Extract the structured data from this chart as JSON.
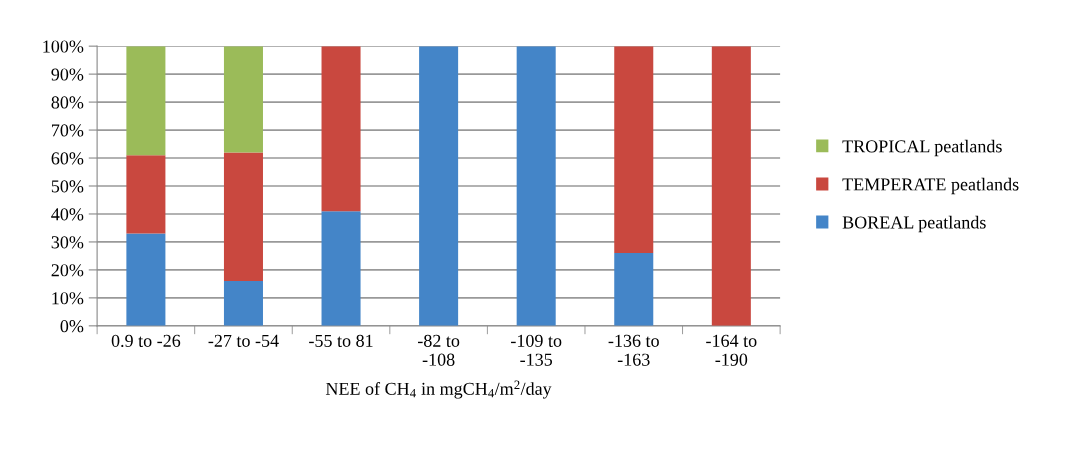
{
  "chart_data": {
    "type": "bar",
    "stacked": true,
    "xlabel": "NEE of CH$_{4}$ in mgCH$_{4}$/m$^{2}$/day",
    "categories": [
      "0.9 to -26",
      "-27 to -54",
      "-55 to 81",
      "-82 to\n-108",
      "-109 to\n-135",
      "-136 to\n-163",
      "-164 to\n-190"
    ],
    "series": [
      {
        "name": "BOREAL peatlands",
        "color": "#4485c8",
        "values": [
          33,
          16,
          41,
          100,
          100,
          26,
          0
        ]
      },
      {
        "name": "TEMPERATE peatlands",
        "color": "#c9483f",
        "values": [
          28,
          46,
          59,
          0,
          0,
          74,
          100
        ]
      },
      {
        "name": "TROPICAL peatlands",
        "color": "#9bbb59",
        "values": [
          39,
          38,
          0,
          0,
          0,
          0,
          0
        ]
      }
    ],
    "ylim": [
      0,
      100
    ],
    "yticks": [
      {
        "value": 0,
        "label": "0%"
      },
      {
        "value": 10,
        "label": "10%"
      },
      {
        "value": 20,
        "label": "20%"
      },
      {
        "value": 30,
        "label": "30%"
      },
      {
        "value": 40,
        "label": "40%"
      },
      {
        "value": 50,
        "label": "50%"
      },
      {
        "value": 60,
        "label": "60%"
      },
      {
        "value": 70,
        "label": "70%"
      },
      {
        "value": 80,
        "label": "80%"
      },
      {
        "value": 90,
        "label": "90%"
      },
      {
        "value": 100,
        "label": "100%"
      }
    ],
    "grid": "y",
    "legend": "right"
  }
}
